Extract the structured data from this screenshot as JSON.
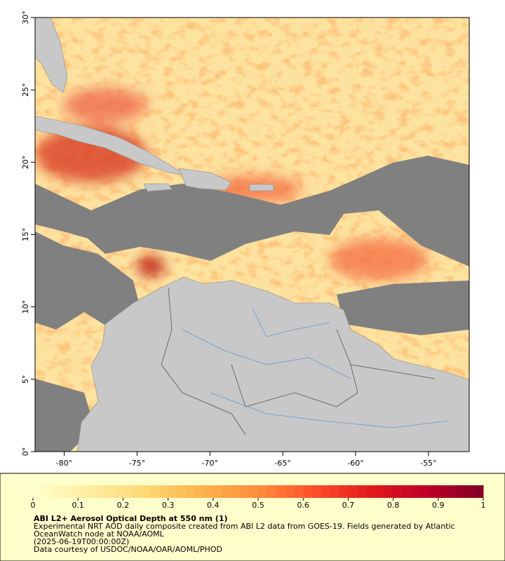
{
  "map": {
    "xlim": [
      -82,
      -52.2
    ],
    "ylim": [
      0,
      30
    ],
    "xticks": [
      {
        "value": -80,
        "label": "-80°"
      },
      {
        "value": -75,
        "label": "-75°"
      },
      {
        "value": -70,
        "label": "-70°"
      },
      {
        "value": -65,
        "label": "-65°"
      },
      {
        "value": -60,
        "label": "-60°"
      },
      {
        "value": -55,
        "label": "-55°"
      }
    ],
    "yticks": [
      {
        "value": 0,
        "label": "0°"
      },
      {
        "value": 5,
        "label": "5°"
      },
      {
        "value": 10,
        "label": "10°"
      },
      {
        "value": 15,
        "label": "15°"
      },
      {
        "value": 20,
        "label": "20°"
      },
      {
        "value": 25,
        "label": "25°"
      },
      {
        "value": 30,
        "label": "30°"
      }
    ]
  },
  "colorbar": {
    "range": [
      0,
      1
    ],
    "ticks": [
      0,
      0.1,
      0.2,
      0.3,
      0.4,
      0.5,
      0.6,
      0.7,
      0.8,
      0.9,
      1
    ],
    "colors": [
      "#ffffcc",
      "#ffeda0",
      "#fed976",
      "#feb24c",
      "#fd8d3c",
      "#fc4e2a",
      "#e31a1c",
      "#bd0026",
      "#800026"
    ]
  },
  "caption": {
    "title": "ABI L2+ Aerosol Optical Depth at 550 nm (1)",
    "lines": [
      "Experimental NRT AOD daily composite created from ABI L2 data from GOES-19. Fields generated by Atlantic",
      "OceanWatch node at NOAA/AOML",
      "(2025-06-19T00:00:00Z)",
      "Data courtesy of USDOC/NOAA/OAR/AOML/PHOD"
    ]
  }
}
